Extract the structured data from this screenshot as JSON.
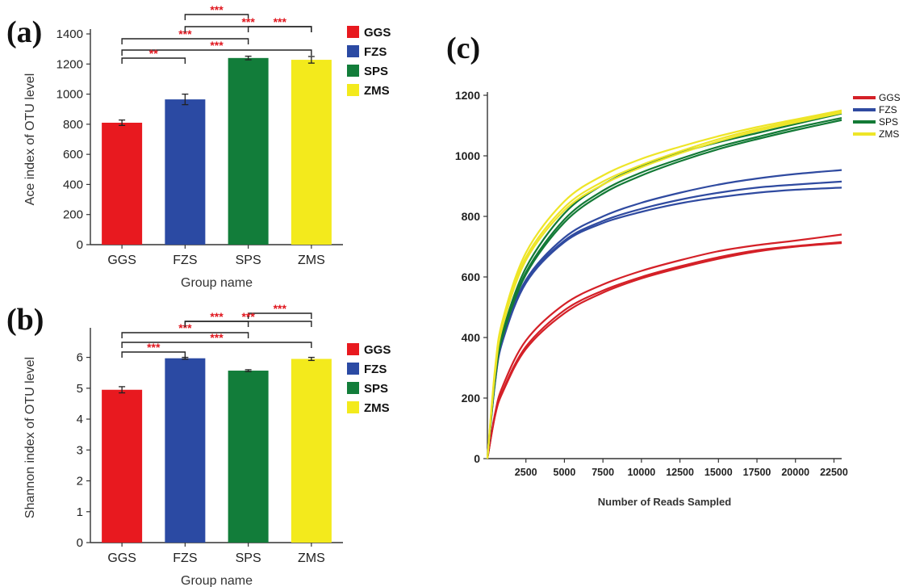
{
  "chart_data": [
    {
      "panel": "(a)",
      "type": "bar",
      "categories": [
        "GGS",
        "FZS",
        "SPS",
        "ZMS"
      ],
      "values": [
        810,
        965,
        1240,
        1228
      ],
      "errors": [
        18,
        35,
        12,
        22
      ],
      "colors": [
        "#e8191f",
        "#2b4aa3",
        "#127d3a",
        "#f3ea1c"
      ],
      "ylabel": "Ace index of OTU level",
      "xlabel": "Group name",
      "ylim": [
        0,
        1400
      ],
      "yticks": [
        0,
        200,
        400,
        600,
        800,
        1000,
        1200,
        1400
      ],
      "legend": [
        "GGS",
        "FZS",
        "SPS",
        "ZMS"
      ],
      "legend_position": "right",
      "significance": [
        {
          "from": "FZS",
          "to": "SPS",
          "label": "***"
        },
        {
          "from": "SPS",
          "to": "ZMS",
          "label": "***"
        },
        {
          "from": "GGS",
          "to": "SPS",
          "label": "***"
        },
        {
          "from": "FZS",
          "to": "ZMS",
          "label": "***"
        },
        {
          "from": "GGS",
          "to": "ZMS",
          "label": "***"
        },
        {
          "from": "GGS",
          "to": "FZS",
          "label": "**"
        }
      ]
    },
    {
      "panel": "(b)",
      "type": "bar",
      "categories": [
        "GGS",
        "FZS",
        "SPS",
        "ZMS"
      ],
      "values": [
        4.95,
        5.97,
        5.57,
        5.95
      ],
      "errors": [
        0.1,
        0.03,
        0.03,
        0.05
      ],
      "colors": [
        "#e8191f",
        "#2b4aa3",
        "#127d3a",
        "#f3ea1c"
      ],
      "ylabel": "Shannon index of OTU level",
      "xlabel": "Group name",
      "ylim": [
        0,
        6.8
      ],
      "yticks": [
        0,
        1,
        2,
        3,
        4,
        5,
        6
      ],
      "legend": [
        "GGS",
        "FZS",
        "SPS",
        "ZMS"
      ],
      "legend_position": "right",
      "significance": [
        {
          "from": "FZS",
          "to": "SPS",
          "label": "***"
        },
        {
          "from": "SPS",
          "to": "ZMS",
          "label": "***"
        },
        {
          "from": "GGS",
          "to": "SPS",
          "label": "***"
        },
        {
          "from": "FZS",
          "to": "ZMS",
          "label": "***"
        },
        {
          "from": "GGS",
          "to": "ZMS",
          "label": "***"
        },
        {
          "from": "GGS",
          "to": "FZS",
          "label": "***"
        }
      ]
    },
    {
      "panel": "(c)",
      "type": "line",
      "xlabel": "Number of Reads Sampled",
      "ylabel": "",
      "xlim": [
        0,
        23000
      ],
      "ylim": [
        0,
        1200
      ],
      "xticks": [
        2500,
        5000,
        7500,
        10000,
        12500,
        15000,
        17500,
        20000,
        22500
      ],
      "yticks": [
        0,
        200,
        400,
        600,
        800,
        1000,
        1200
      ],
      "legend": [
        "GGS",
        "FZS",
        "SPS",
        "ZMS"
      ],
      "legend_position": "top-right",
      "series": [
        {
          "name": "GGS",
          "color": "#d42027",
          "x": [
            0,
            500,
            1000,
            2500,
            5000,
            7500,
            10000,
            12500,
            15000,
            17500,
            20000,
            23000
          ],
          "values": [
            0,
            150,
            240,
            390,
            510,
            575,
            620,
            655,
            685,
            705,
            720,
            740
          ]
        },
        {
          "name": "GGS",
          "color": "#d42027",
          "x": [
            0,
            500,
            1000,
            2500,
            5000,
            7500,
            10000,
            12500,
            15000,
            17500,
            20000,
            23000
          ],
          "values": [
            0,
            145,
            225,
            370,
            490,
            555,
            600,
            635,
            665,
            688,
            702,
            715
          ]
        },
        {
          "name": "GGS",
          "color": "#d42027",
          "x": [
            0,
            500,
            1000,
            2500,
            5000,
            7500,
            10000,
            12500,
            15000,
            17500,
            20000,
            23000
          ],
          "values": [
            0,
            142,
            220,
            362,
            480,
            548,
            595,
            630,
            660,
            684,
            700,
            712
          ]
        },
        {
          "name": "FZS",
          "color": "#2f4aa0",
          "x": [
            0,
            500,
            1000,
            2500,
            5000,
            7500,
            10000,
            12500,
            15000,
            17500,
            20000,
            23000
          ],
          "values": [
            0,
            260,
            400,
            590,
            730,
            800,
            845,
            878,
            905,
            925,
            940,
            953
          ]
        },
        {
          "name": "FZS",
          "color": "#2f4aa0",
          "x": [
            0,
            500,
            1000,
            2500,
            5000,
            7500,
            10000,
            12500,
            15000,
            17500,
            20000,
            23000
          ],
          "values": [
            0,
            255,
            395,
            585,
            720,
            785,
            825,
            855,
            878,
            895,
            905,
            915
          ]
        },
        {
          "name": "FZS",
          "color": "#2f4aa0",
          "x": [
            0,
            500,
            1000,
            2500,
            5000,
            7500,
            10000,
            12500,
            15000,
            17500,
            20000,
            23000
          ],
          "values": [
            0,
            252,
            390,
            580,
            715,
            778,
            815,
            843,
            863,
            878,
            888,
            895
          ]
        },
        {
          "name": "SPS",
          "color": "#137a36",
          "x": [
            0,
            500,
            1000,
            2500,
            5000,
            7500,
            10000,
            12500,
            15000,
            17500,
            20000,
            23000
          ],
          "values": [
            0,
            270,
            420,
            630,
            810,
            905,
            965,
            1010,
            1045,
            1075,
            1105,
            1140
          ]
        },
        {
          "name": "SPS",
          "color": "#137a36",
          "x": [
            0,
            500,
            1000,
            2500,
            5000,
            7500,
            10000,
            12500,
            15000,
            17500,
            20000,
            23000
          ],
          "values": [
            0,
            265,
            410,
            615,
            790,
            885,
            945,
            990,
            1030,
            1062,
            1093,
            1125
          ]
        },
        {
          "name": "SPS",
          "color": "#137a36",
          "x": [
            0,
            500,
            1000,
            2500,
            5000,
            7500,
            10000,
            12500,
            15000,
            17500,
            20000,
            23000
          ],
          "values": [
            0,
            262,
            405,
            608,
            780,
            875,
            935,
            982,
            1022,
            1055,
            1085,
            1118
          ]
        },
        {
          "name": "ZMS",
          "color": "#eee528",
          "x": [
            0,
            500,
            1000,
            2500,
            5000,
            7500,
            10000,
            12500,
            15000,
            17500,
            20000,
            23000
          ],
          "values": [
            0,
            300,
            460,
            680,
            850,
            935,
            990,
            1030,
            1065,
            1095,
            1120,
            1150
          ]
        },
        {
          "name": "ZMS",
          "color": "#eee528",
          "x": [
            0,
            500,
            1000,
            2500,
            5000,
            7500,
            10000,
            12500,
            15000,
            17500,
            20000,
            23000
          ],
          "values": [
            0,
            290,
            450,
            665,
            830,
            915,
            970,
            1015,
            1055,
            1088,
            1115,
            1145
          ]
        },
        {
          "name": "ZMS",
          "color": "#eee528",
          "x": [
            0,
            500,
            1000,
            2500,
            5000,
            7500,
            10000,
            12500,
            15000,
            17500,
            20000,
            23000
          ],
          "values": [
            0,
            282,
            440,
            655,
            820,
            905,
            962,
            1008,
            1048,
            1082,
            1110,
            1142
          ]
        }
      ]
    }
  ]
}
